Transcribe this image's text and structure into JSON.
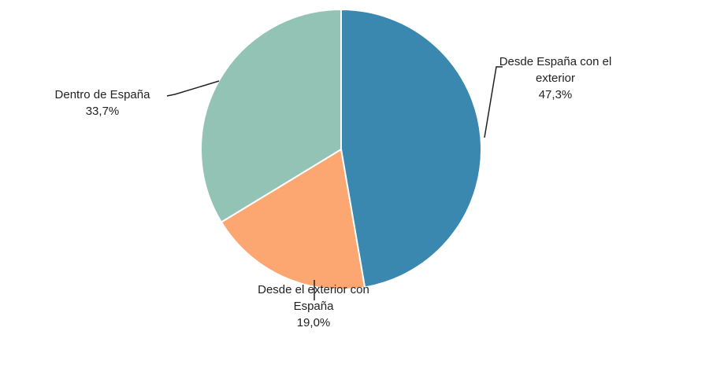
{
  "chart_data": {
    "type": "pie",
    "categories": [
      "Desde España con el exterior",
      "Desde el exterior con España",
      "Dentro de España"
    ],
    "values": [
      47.3,
      19.0,
      33.7
    ],
    "value_labels": [
      "47,3%",
      "19,0%",
      "33,7%"
    ],
    "colors": [
      "#3a87b0",
      "#fca772",
      "#92c3b4"
    ]
  }
}
